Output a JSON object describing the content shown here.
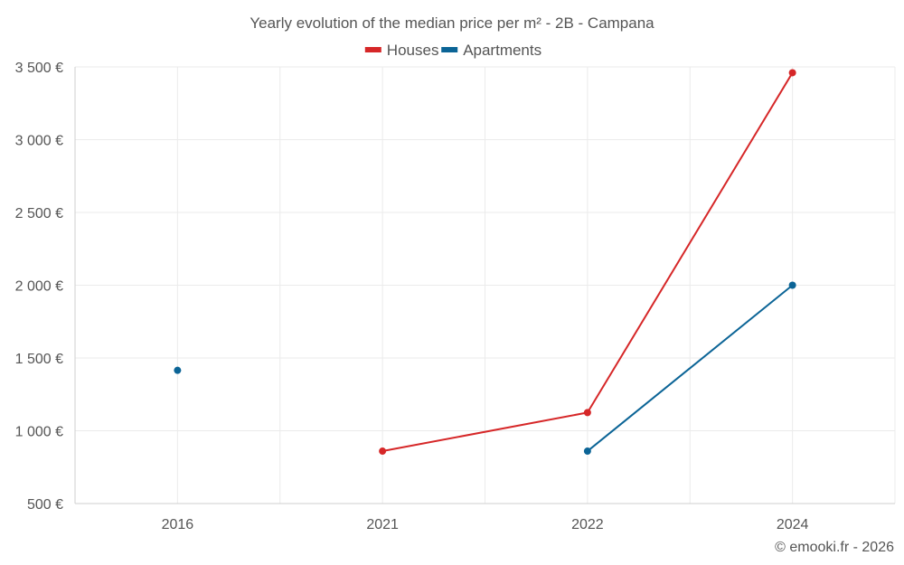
{
  "chart_data": {
    "type": "line",
    "title": "Yearly evolution of the median price per m² - 2B - Campana",
    "categories": [
      "2016",
      "2021",
      "2022",
      "2024"
    ],
    "ylim": [
      500,
      3500
    ],
    "yticks": [
      500,
      1000,
      1500,
      2000,
      2500,
      3000,
      3500
    ],
    "ytick_labels": [
      "500 €",
      "1 000 €",
      "1 500 €",
      "2 000 €",
      "2 500 €",
      "3 000 €",
      "3 500 €"
    ],
    "legend_position": "top-center",
    "grid": true,
    "series": [
      {
        "name": "Houses",
        "color": "#d62728",
        "values": [
          null,
          860,
          1125,
          3460
        ]
      },
      {
        "name": "Apartments",
        "color": "#0b6496",
        "values": [
          1415,
          null,
          860,
          2000
        ]
      }
    ],
    "credit": "© emooki.fr - 2026"
  }
}
